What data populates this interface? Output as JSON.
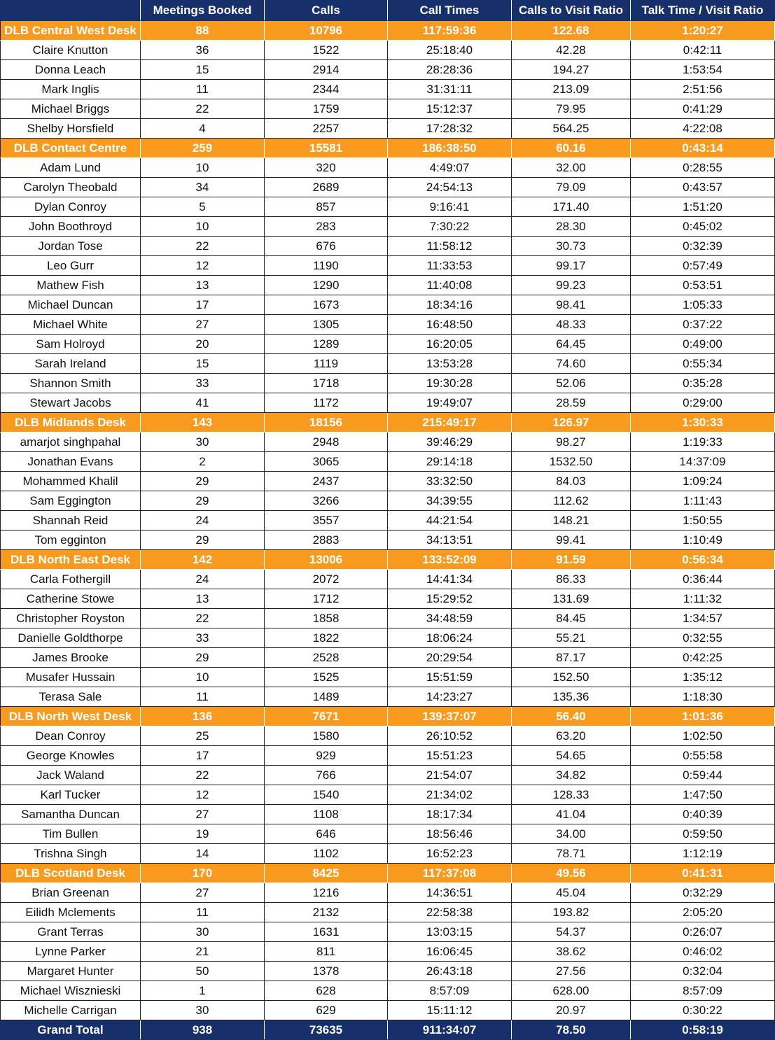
{
  "columns": [
    "",
    "Meetings Booked",
    "Calls",
    "Call Times",
    "Calls to Visit Ratio",
    "Talk Time / Visit Ratio"
  ],
  "colors": {
    "header_bg": "#17306b",
    "group_bg": "#f79a1e",
    "total_bg": "#17306b"
  },
  "groups": [
    {
      "summary": [
        "DLB Central West Desk",
        "88",
        "10796",
        "117:59:36",
        "122.68",
        "1:20:27"
      ],
      "rows": [
        [
          "Claire Knutton",
          "36",
          "1522",
          "25:18:40",
          "42.28",
          "0:42:11"
        ],
        [
          "Donna Leach",
          "15",
          "2914",
          "28:28:36",
          "194.27",
          "1:53:54"
        ],
        [
          "Mark Inglis",
          "11",
          "2344",
          "31:31:11",
          "213.09",
          "2:51:56"
        ],
        [
          "Michael Briggs",
          "22",
          "1759",
          "15:12:37",
          "79.95",
          "0:41:29"
        ],
        [
          "Shelby Horsfield",
          "4",
          "2257",
          "17:28:32",
          "564.25",
          "4:22:08"
        ]
      ]
    },
    {
      "summary": [
        "DLB Contact Centre",
        "259",
        "15581",
        "186:38:50",
        "60.16",
        "0:43:14"
      ],
      "rows": [
        [
          "Adam Lund",
          "10",
          "320",
          "4:49:07",
          "32.00",
          "0:28:55"
        ],
        [
          "Carolyn Theobald",
          "34",
          "2689",
          "24:54:13",
          "79.09",
          "0:43:57"
        ],
        [
          "Dylan Conroy",
          "5",
          "857",
          "9:16:41",
          "171.40",
          "1:51:20"
        ],
        [
          "John Boothroyd",
          "10",
          "283",
          "7:30:22",
          "28.30",
          "0:45:02"
        ],
        [
          "Jordan Tose",
          "22",
          "676",
          "11:58:12",
          "30.73",
          "0:32:39"
        ],
        [
          "Leo Gurr",
          "12",
          "1190",
          "11:33:53",
          "99.17",
          "0:57:49"
        ],
        [
          "Mathew Fish",
          "13",
          "1290",
          "11:40:08",
          "99.23",
          "0:53:51"
        ],
        [
          "Michael Duncan",
          "17",
          "1673",
          "18:34:16",
          "98.41",
          "1:05:33"
        ],
        [
          "Michael White",
          "27",
          "1305",
          "16:48:50",
          "48.33",
          "0:37:22"
        ],
        [
          "Sam Holroyd",
          "20",
          "1289",
          "16:20:05",
          "64.45",
          "0:49:00"
        ],
        [
          "Sarah Ireland",
          "15",
          "1119",
          "13:53:28",
          "74.60",
          "0:55:34"
        ],
        [
          "Shannon Smith",
          "33",
          "1718",
          "19:30:28",
          "52.06",
          "0:35:28"
        ],
        [
          "Stewart Jacobs",
          "41",
          "1172",
          "19:49:07",
          "28.59",
          "0:29:00"
        ]
      ]
    },
    {
      "summary": [
        "DLB Midlands Desk",
        "143",
        "18156",
        "215:49:17",
        "126.97",
        "1:30:33"
      ],
      "rows": [
        [
          "amarjot singhpahal",
          "30",
          "2948",
          "39:46:29",
          "98.27",
          "1:19:33"
        ],
        [
          "Jonathan Evans",
          "2",
          "3065",
          "29:14:18",
          "1532.50",
          "14:37:09"
        ],
        [
          "Mohammed Khalil",
          "29",
          "2437",
          "33:32:50",
          "84.03",
          "1:09:24"
        ],
        [
          "Sam Eggington",
          "29",
          "3266",
          "34:39:55",
          "112.62",
          "1:11:43"
        ],
        [
          "Shannah Reid",
          "24",
          "3557",
          "44:21:54",
          "148.21",
          "1:50:55"
        ],
        [
          "Tom egginton",
          "29",
          "2883",
          "34:13:51",
          "99.41",
          "1:10:49"
        ]
      ]
    },
    {
      "summary": [
        "DLB North East Desk",
        "142",
        "13006",
        "133:52:09",
        "91.59",
        "0:56:34"
      ],
      "rows": [
        [
          "Carla Fothergill",
          "24",
          "2072",
          "14:41:34",
          "86.33",
          "0:36:44"
        ],
        [
          "Catherine Stowe",
          "13",
          "1712",
          "15:29:52",
          "131.69",
          "1:11:32"
        ],
        [
          "Christopher Royston",
          "22",
          "1858",
          "34:48:59",
          "84.45",
          "1:34:57"
        ],
        [
          "Danielle Goldthorpe",
          "33",
          "1822",
          "18:06:24",
          "55.21",
          "0:32:55"
        ],
        [
          "James Brooke",
          "29",
          "2528",
          "20:29:54",
          "87.17",
          "0:42:25"
        ],
        [
          "Musafer Hussain",
          "10",
          "1525",
          "15:51:59",
          "152.50",
          "1:35:12"
        ],
        [
          "Terasa Sale",
          "11",
          "1489",
          "14:23:27",
          "135.36",
          "1:18:30"
        ]
      ]
    },
    {
      "summary": [
        "DLB North West Desk",
        "136",
        "7671",
        "139:37:07",
        "56.40",
        "1:01:36"
      ],
      "rows": [
        [
          "Dean Conroy",
          "25",
          "1580",
          "26:10:52",
          "63.20",
          "1:02:50"
        ],
        [
          "George Knowles",
          "17",
          "929",
          "15:51:23",
          "54.65",
          "0:55:58"
        ],
        [
          "Jack Waland",
          "22",
          "766",
          "21:54:07",
          "34.82",
          "0:59:44"
        ],
        [
          "Karl Tucker",
          "12",
          "1540",
          "21:34:02",
          "128.33",
          "1:47:50"
        ],
        [
          "Samantha Duncan",
          "27",
          "1108",
          "18:17:34",
          "41.04",
          "0:40:39"
        ],
        [
          "Tim Bullen",
          "19",
          "646",
          "18:56:46",
          "34.00",
          "0:59:50"
        ],
        [
          "Trishna Singh",
          "14",
          "1102",
          "16:52:23",
          "78.71",
          "1:12:19"
        ]
      ]
    },
    {
      "summary": [
        "DLB Scotland Desk",
        "170",
        "8425",
        "117:37:08",
        "49.56",
        "0:41:31"
      ],
      "rows": [
        [
          "Brian Greenan",
          "27",
          "1216",
          "14:36:51",
          "45.04",
          "0:32:29"
        ],
        [
          "Eilidh Mclements",
          "11",
          "2132",
          "22:58:38",
          "193.82",
          "2:05:20"
        ],
        [
          "Grant Terras",
          "30",
          "1631",
          "13:03:15",
          "54.37",
          "0:26:07"
        ],
        [
          "Lynne Parker",
          "21",
          "811",
          "16:06:45",
          "38.62",
          "0:46:02"
        ],
        [
          "Margaret Hunter",
          "50",
          "1378",
          "26:43:18",
          "27.56",
          "0:32:04"
        ],
        [
          "Michael Wisznieski",
          "1",
          "628",
          "8:57:09",
          "628.00",
          "8:57:09"
        ],
        [
          "Michelle Carrigan",
          "30",
          "629",
          "15:11:12",
          "20.97",
          "0:30:22"
        ]
      ]
    }
  ],
  "grand_total": [
    "Grand Total",
    "938",
    "73635",
    "911:34:07",
    "78.50",
    "0:58:19"
  ]
}
